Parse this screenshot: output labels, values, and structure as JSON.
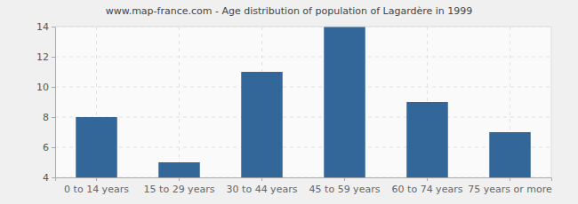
{
  "chart_data": {
    "type": "bar",
    "title": "www.map-france.com - Age distribution of population of Lagardère in 1999",
    "categories": [
      "0 to 14 years",
      "15 to 29 years",
      "30 to 44 years",
      "45 to 59 years",
      "60 to 74 years",
      "75 years or more"
    ],
    "values": [
      8,
      5,
      11,
      14,
      9,
      7
    ],
    "color": "#336699",
    "ylim": [
      4,
      14
    ],
    "yticks": [
      4,
      6,
      8,
      10,
      12,
      14
    ],
    "grid": true
  }
}
